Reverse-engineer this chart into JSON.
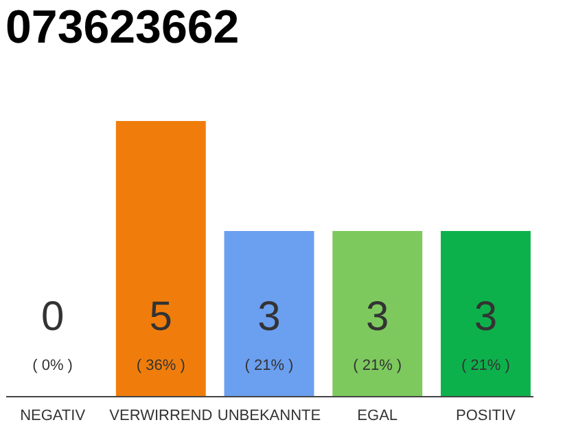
{
  "chart_data": {
    "type": "bar",
    "title": "073623662",
    "categories": [
      "NEGATIV",
      "VERWIRREND",
      "UNBEKANNTE",
      "EGAL",
      "POSITIV"
    ],
    "values": [
      0,
      5,
      3,
      3,
      3
    ],
    "data_labels": true,
    "colors": [
      "#e0e0e0",
      "#f07d0b",
      "#6b9fef",
      "#7dc95e",
      "#0db14b"
    ],
    "annotations": [
      "( 0% )",
      "( 36% )",
      "( 21% )",
      "( 21% )",
      "( 21% )"
    ]
  }
}
